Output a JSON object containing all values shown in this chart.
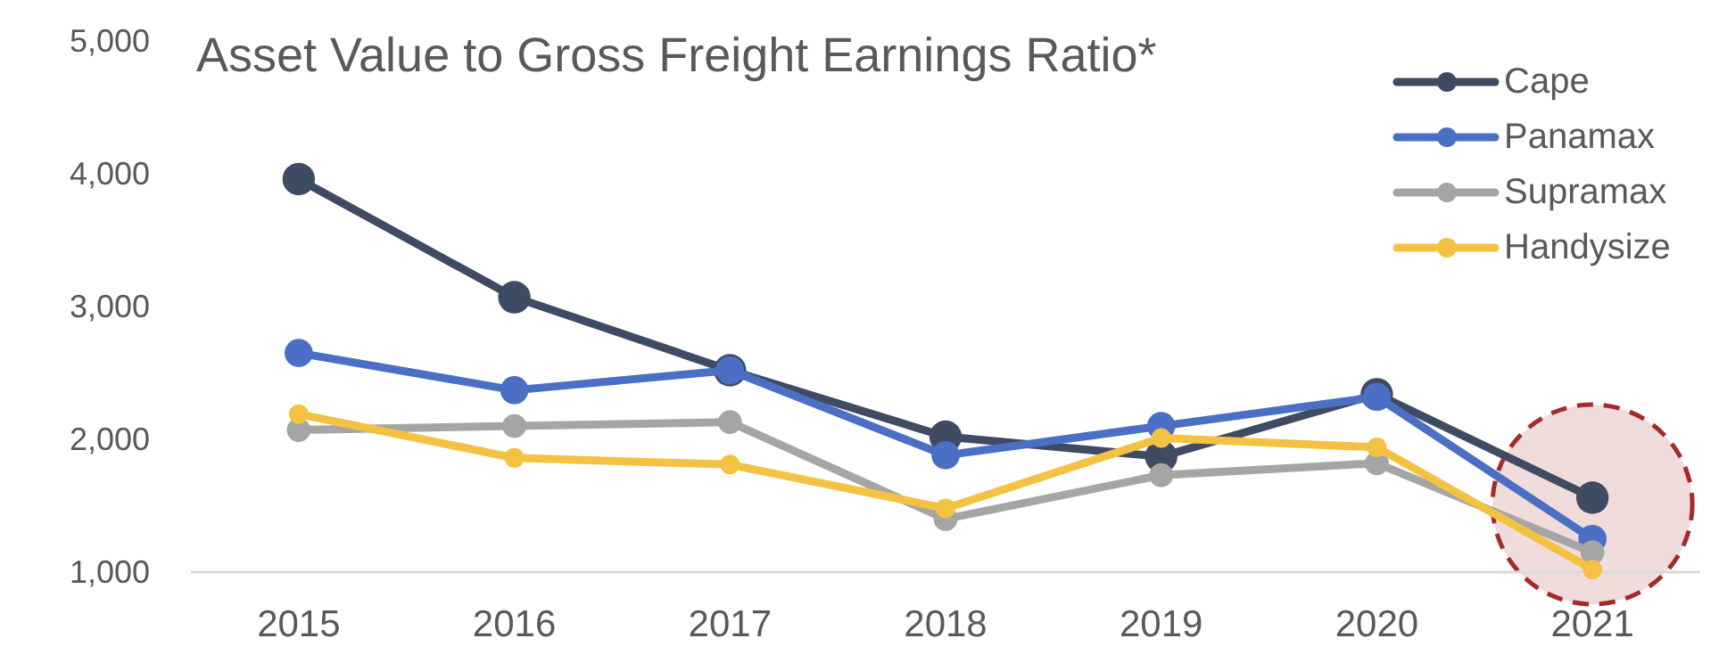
{
  "chart_data": {
    "type": "line",
    "title": "Asset Value to Gross Freight Earnings Ratio*",
    "categories": [
      "2015",
      "2016",
      "2017",
      "2018",
      "2019",
      "2020",
      "2021"
    ],
    "series": [
      {
        "name": "Cape",
        "color": "#3f4a63",
        "values": [
          3960,
          3070,
          2520,
          2020,
          1870,
          2340,
          1560
        ]
      },
      {
        "name": "Panamax",
        "color": "#4a6fc4",
        "values": [
          2650,
          2370,
          2520,
          1880,
          2100,
          2320,
          1250
        ]
      },
      {
        "name": "Supramax",
        "color": "#a5a5a5",
        "values": [
          2070,
          2100,
          2130,
          1400,
          1730,
          1820,
          1150
        ]
      },
      {
        "name": "Handysize",
        "color": "#f4c242",
        "values": [
          2190,
          1860,
          1810,
          1480,
          2010,
          1940,
          1020
        ]
      }
    ],
    "ylim": [
      1000,
      5000
    ],
    "yticks": [
      {
        "value": 1000,
        "label": "1,000"
      },
      {
        "value": 2000,
        "label": "2,000"
      },
      {
        "value": 3000,
        "label": "3,000"
      },
      {
        "value": 4000,
        "label": "4,000"
      },
      {
        "value": 5000,
        "label": "5,000"
      }
    ],
    "grid": false,
    "legend": "top right",
    "marker": "circle",
    "line_style": "solid"
  }
}
